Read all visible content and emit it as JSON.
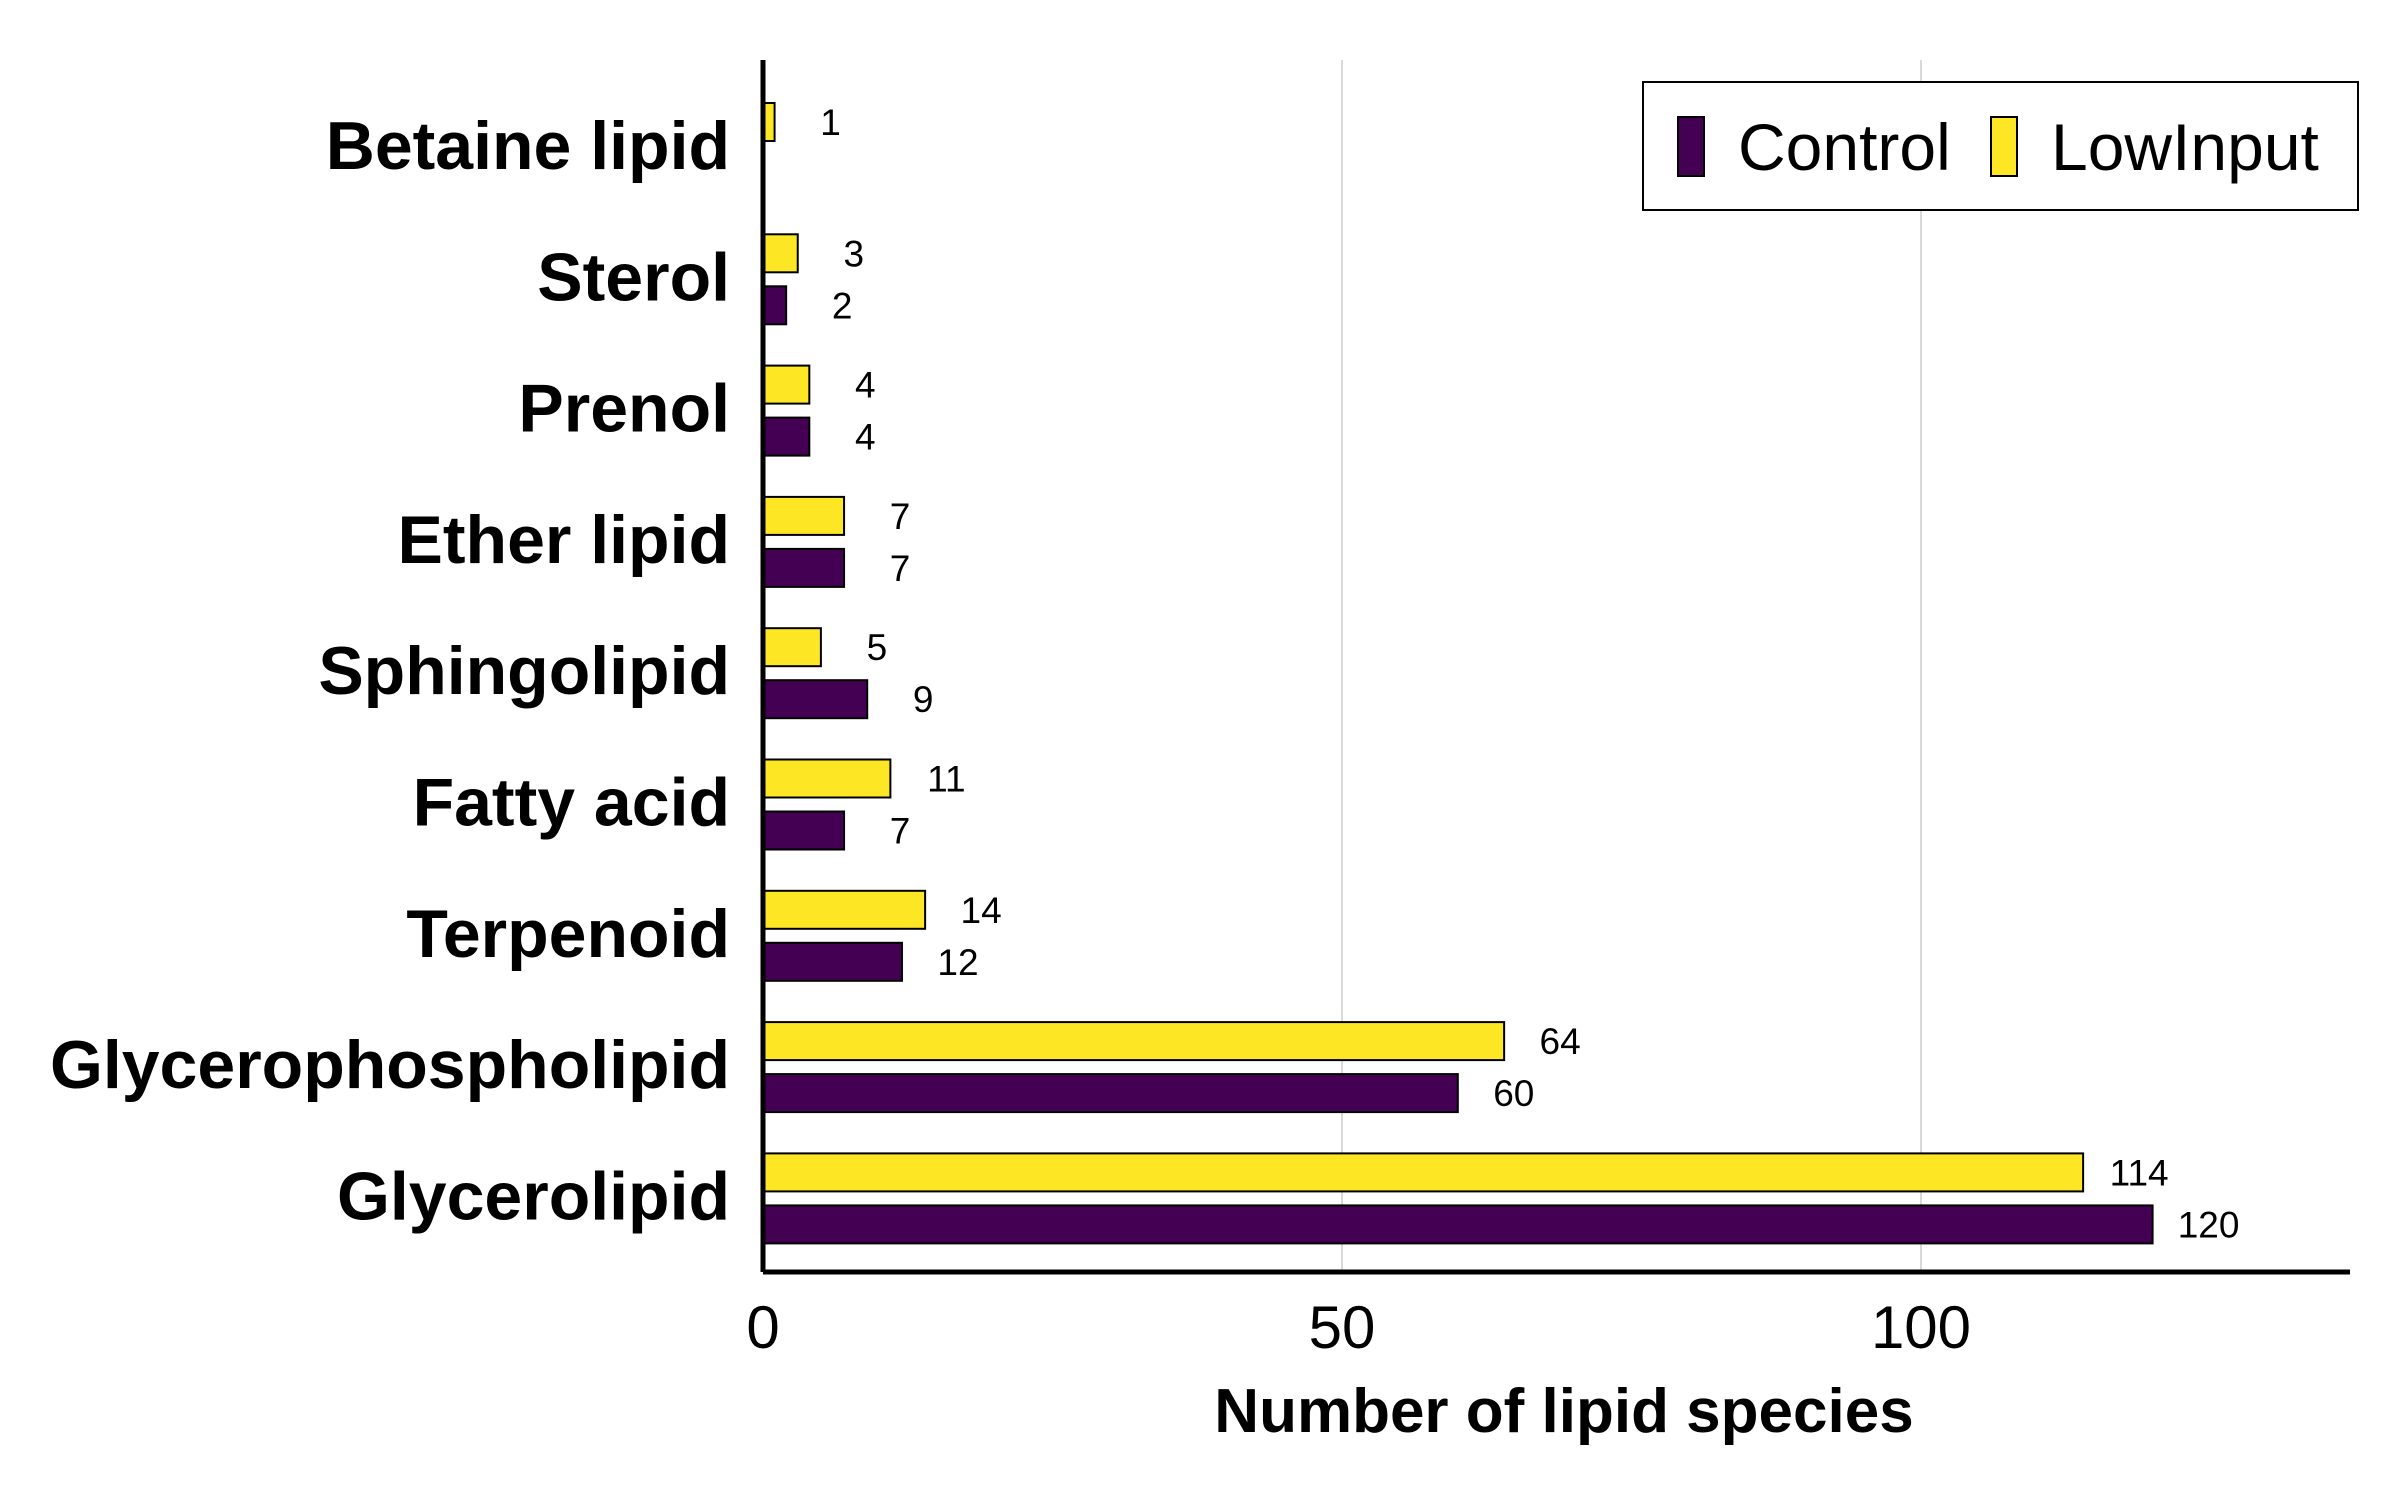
{
  "chart_data": {
    "type": "bar",
    "orientation": "horizontal",
    "categories": [
      "Betaine lipid",
      "Sterol",
      "Prenol",
      "Ether lipid",
      "Sphingolipid",
      "Fatty acid",
      "Terpenoid",
      "Glycerophospholipid",
      "Glycerolipid"
    ],
    "series": [
      {
        "name": "Control",
        "color": "#440154",
        "values": [
          null,
          2,
          4,
          7,
          9,
          7,
          12,
          60,
          120
        ]
      },
      {
        "name": "LowInput",
        "color": "#fde725",
        "values": [
          1,
          3,
          4,
          7,
          5,
          11,
          14,
          64,
          114
        ]
      }
    ],
    "xlabel": "Number of lipid species",
    "ylabel": "",
    "xlim": [
      0,
      137
    ],
    "xticks": [
      0,
      50,
      100
    ],
    "grid": "vertical",
    "legend_position": "top-right"
  }
}
